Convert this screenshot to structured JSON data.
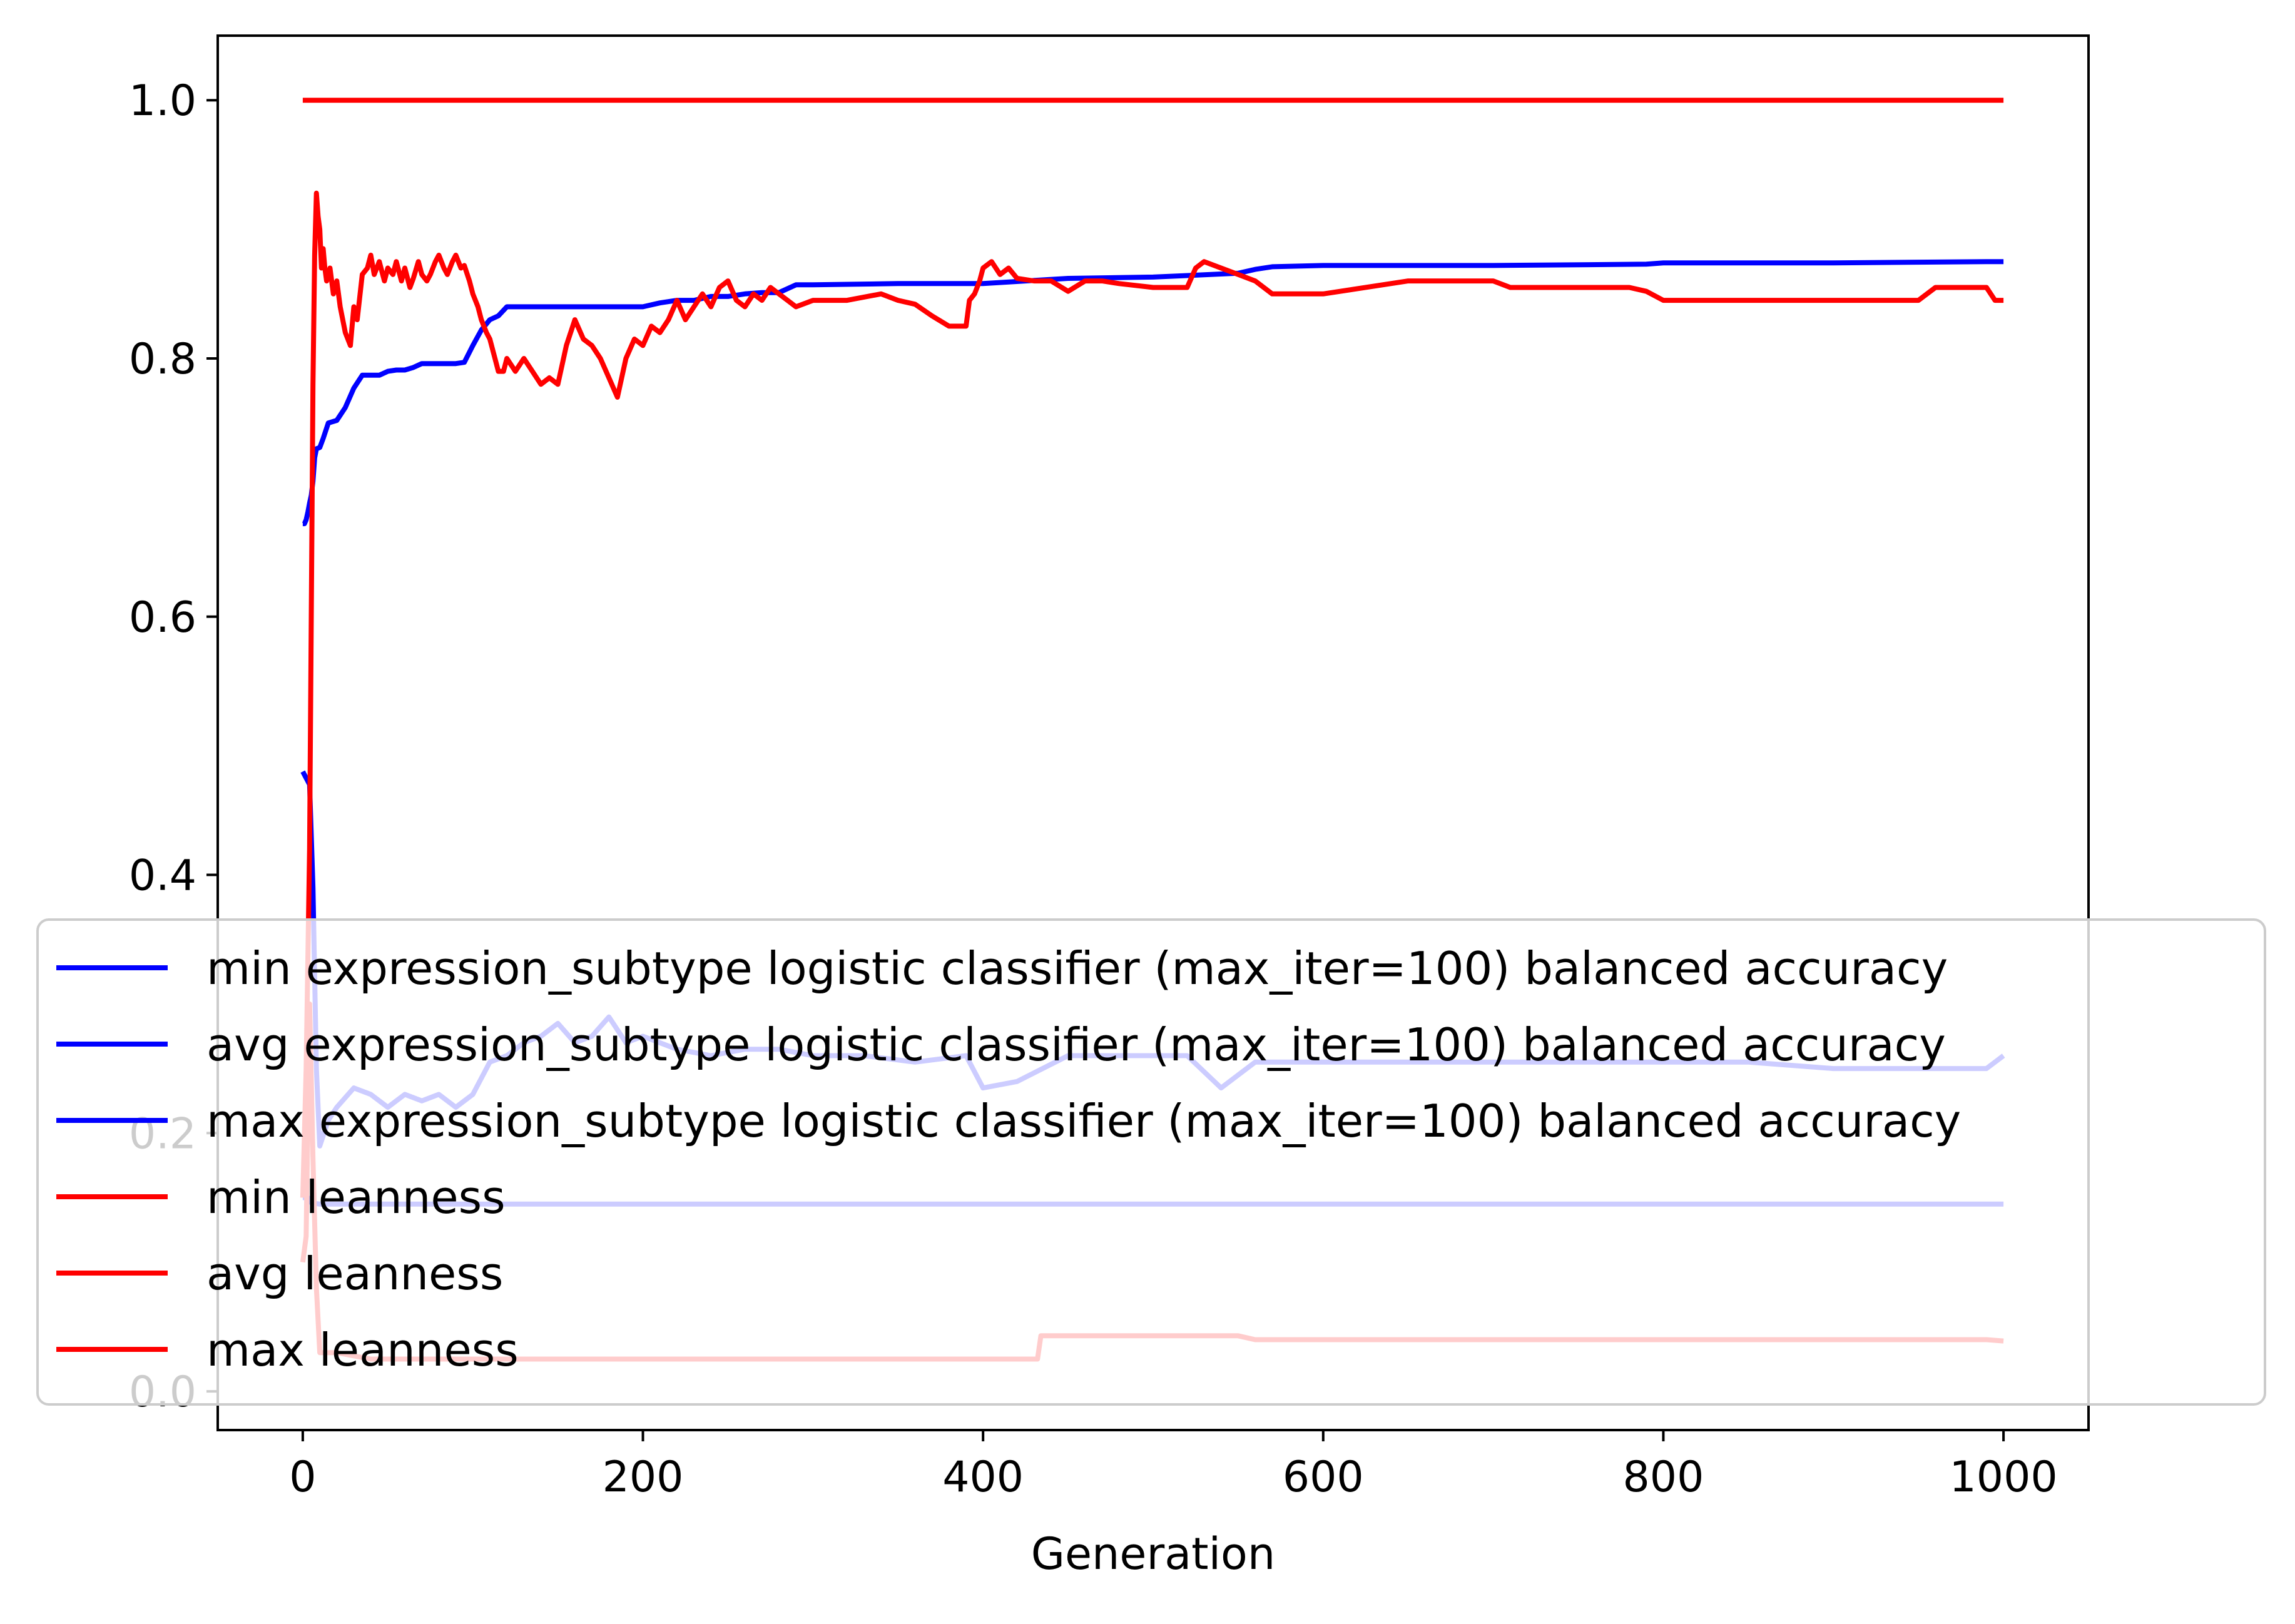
{
  "chart_data": {
    "type": "line",
    "title": "",
    "xlabel": "Generation",
    "ylabel": "",
    "xlim": [
      -50,
      1050
    ],
    "ylim": [
      -0.03,
      1.05
    ],
    "xticks": [
      0,
      200,
      400,
      600,
      800,
      1000
    ],
    "xtick_labels": [
      "0",
      "200",
      "400",
      "600",
      "800",
      "1000"
    ],
    "yticks": [
      0.0,
      0.2,
      0.4,
      0.6,
      0.8,
      1.0
    ],
    "ytick_labels": [
      "0.0",
      "0.2",
      "0.4",
      "0.6",
      "0.8",
      "1.0"
    ],
    "grid": false,
    "legend_position": "lower-center",
    "series": [
      {
        "name": "min expression_subtype logistic classifier (max_iter=100) balanced accuracy",
        "color": "#0000ff",
        "visibility": "faded",
        "x": [
          0,
          3,
          5,
          10,
          1000
        ],
        "y": [
          0.15,
          0.15,
          0.146,
          0.145,
          0.145
        ]
      },
      {
        "name": "avg expression_subtype logistic classifier (max_iter=100) balanced accuracy",
        "color": "#0000ff",
        "visibility": "faded",
        "x": [
          0,
          4,
          6,
          8,
          10,
          15,
          20,
          30,
          40,
          50,
          60,
          70,
          80,
          90,
          100,
          110,
          120,
          130,
          140,
          150,
          160,
          170,
          180,
          190,
          200,
          220,
          240,
          260,
          280,
          300,
          330,
          360,
          390,
          400,
          420,
          450,
          480,
          500,
          520,
          540,
          560,
          600,
          650,
          700,
          750,
          800,
          850,
          900,
          950,
          990,
          1000
        ],
        "y": [
          0.48,
          0.47,
          0.39,
          0.25,
          0.19,
          0.21,
          0.22,
          0.235,
          0.23,
          0.22,
          0.23,
          0.225,
          0.23,
          0.22,
          0.23,
          0.255,
          0.26,
          0.27,
          0.275,
          0.285,
          0.27,
          0.275,
          0.29,
          0.27,
          0.275,
          0.265,
          0.26,
          0.265,
          0.265,
          0.26,
          0.26,
          0.255,
          0.26,
          0.235,
          0.24,
          0.26,
          0.26,
          0.26,
          0.26,
          0.235,
          0.255,
          0.255,
          0.255,
          0.255,
          0.255,
          0.255,
          0.255,
          0.25,
          0.25,
          0.25,
          0.26
        ]
      },
      {
        "name": "max expression_subtype logistic classifier (max_iter=100) balanced accuracy",
        "color": "#0000ff",
        "visibility": "visible",
        "x": [
          0,
          1,
          2,
          3,
          4,
          5,
          6,
          7,
          8,
          10,
          12,
          15,
          20,
          25,
          30,
          35,
          40,
          45,
          50,
          55,
          60,
          65,
          70,
          75,
          80,
          85,
          90,
          95,
          100,
          105,
          110,
          115,
          120,
          130,
          140,
          150,
          160,
          170,
          180,
          190,
          200,
          210,
          220,
          230,
          240,
          250,
          260,
          270,
          280,
          290,
          300,
          350,
          400,
          450,
          500,
          550,
          560,
          570,
          600,
          700,
          790,
          800,
          900,
          990,
          1000
        ],
        "y": [
          0.672,
          0.672,
          0.675,
          0.681,
          0.688,
          0.694,
          0.705,
          0.723,
          0.73,
          0.731,
          0.738,
          0.75,
          0.752,
          0.762,
          0.777,
          0.787,
          0.787,
          0.787,
          0.79,
          0.791,
          0.791,
          0.793,
          0.796,
          0.796,
          0.796,
          0.796,
          0.796,
          0.797,
          0.81,
          0.822,
          0.83,
          0.833,
          0.84,
          0.84,
          0.84,
          0.84,
          0.84,
          0.84,
          0.84,
          0.84,
          0.84,
          0.843,
          0.845,
          0.845,
          0.848,
          0.848,
          0.85,
          0.851,
          0.851,
          0.857,
          0.857,
          0.858,
          0.858,
          0.862,
          0.863,
          0.866,
          0.869,
          0.871,
          0.872,
          0.872,
          0.873,
          0.874,
          0.874,
          0.875,
          0.875
        ]
      },
      {
        "name": "min leanness",
        "color": "#ff0000",
        "visibility": "faded",
        "x": [
          0,
          2,
          4,
          6,
          8,
          10,
          20,
          40,
          100,
          200,
          300,
          400,
          432,
          434,
          500,
          550,
          560,
          600,
          700,
          800,
          900,
          990,
          1000
        ],
        "y": [
          0.1,
          0.12,
          0.3,
          0.18,
          0.08,
          0.03,
          0.03,
          0.025,
          0.025,
          0.025,
          0.025,
          0.025,
          0.025,
          0.043,
          0.043,
          0.043,
          0.04,
          0.04,
          0.04,
          0.04,
          0.04,
          0.04,
          0.039
        ]
      },
      {
        "name": "avg leanness",
        "color": "#ff0000",
        "visibility": "visible",
        "x": [
          0,
          2,
          4,
          6,
          7,
          8,
          9,
          10,
          11,
          12,
          13,
          14,
          16,
          18,
          20,
          22,
          25,
          28,
          30,
          32,
          35,
          38,
          40,
          42,
          45,
          48,
          50,
          53,
          55,
          58,
          60,
          63,
          65,
          68,
          70,
          73,
          75,
          78,
          80,
          83,
          85,
          88,
          90,
          93,
          95,
          98,
          100,
          103,
          105,
          108,
          110,
          113,
          115,
          118,
          120,
          125,
          130,
          135,
          140,
          145,
          150,
          155,
          160,
          165,
          170,
          175,
          180,
          185,
          190,
          195,
          200,
          205,
          210,
          215,
          220,
          225,
          230,
          235,
          240,
          245,
          250,
          255,
          260,
          265,
          270,
          275,
          280,
          285,
          290,
          300,
          320,
          340,
          350,
          360,
          370,
          380,
          390,
          392,
          395,
          398,
          400,
          405,
          410,
          415,
          420,
          430,
          440,
          450,
          460,
          470,
          480,
          500,
          520,
          525,
          530,
          540,
          550,
          560,
          570,
          600,
          650,
          700,
          710,
          750,
          780,
          790,
          800,
          850,
          900,
          950,
          960,
          980,
          990,
          995,
          1000
        ],
        "y": [
          0.15,
          0.25,
          0.42,
          0.78,
          0.88,
          0.928,
          0.91,
          0.9,
          0.87,
          0.885,
          0.87,
          0.86,
          0.87,
          0.85,
          0.86,
          0.84,
          0.82,
          0.81,
          0.84,
          0.83,
          0.865,
          0.87,
          0.88,
          0.865,
          0.875,
          0.86,
          0.87,
          0.865,
          0.875,
          0.86,
          0.87,
          0.855,
          0.862,
          0.875,
          0.865,
          0.86,
          0.865,
          0.875,
          0.88,
          0.87,
          0.865,
          0.875,
          0.88,
          0.87,
          0.872,
          0.86,
          0.85,
          0.84,
          0.83,
          0.82,
          0.815,
          0.8,
          0.79,
          0.79,
          0.8,
          0.79,
          0.8,
          0.79,
          0.78,
          0.785,
          0.78,
          0.81,
          0.83,
          0.815,
          0.81,
          0.8,
          0.785,
          0.77,
          0.8,
          0.815,
          0.81,
          0.825,
          0.82,
          0.83,
          0.845,
          0.83,
          0.84,
          0.85,
          0.84,
          0.855,
          0.86,
          0.845,
          0.84,
          0.85,
          0.845,
          0.855,
          0.85,
          0.845,
          0.84,
          0.845,
          0.845,
          0.85,
          0.845,
          0.842,
          0.833,
          0.825,
          0.825,
          0.845,
          0.85,
          0.86,
          0.87,
          0.875,
          0.865,
          0.87,
          0.862,
          0.86,
          0.86,
          0.852,
          0.86,
          0.86,
          0.858,
          0.855,
          0.855,
          0.87,
          0.875,
          0.87,
          0.865,
          0.86,
          0.85,
          0.85,
          0.86,
          0.86,
          0.855,
          0.855,
          0.855,
          0.852,
          0.845,
          0.845,
          0.845,
          0.845,
          0.855,
          0.855,
          0.855,
          0.845,
          0.845
        ]
      },
      {
        "name": "max leanness",
        "color": "#ff0000",
        "visibility": "visible",
        "x": [
          0,
          1000
        ],
        "y": [
          1.0,
          1.0
        ]
      }
    ]
  }
}
